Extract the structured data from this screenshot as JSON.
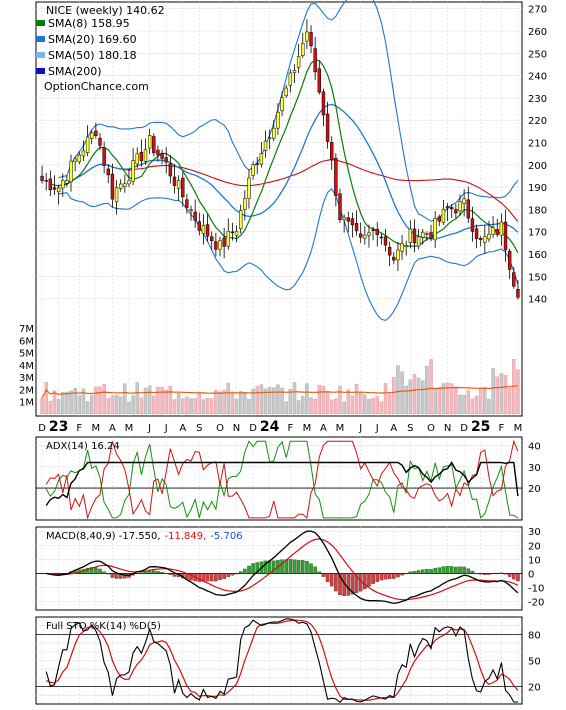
{
  "header": {
    "symbol_line": "NICE (weekly) 140.62",
    "watermark": "OptionChance.com"
  },
  "legend": [
    {
      "label": "SMA(8) 158.95",
      "color": "#0a7a0a"
    },
    {
      "label": "SMA(20) 169.60",
      "color": "#1f77d0"
    },
    {
      "label": "SMA(50) 180.18",
      "color": "#7ab8e8"
    },
    {
      "label": "SMA(200)",
      "color": "#1010c0"
    }
  ],
  "colors": {
    "up_candle": "#ffff33",
    "down_candle": "#cc1111",
    "sma8": "#0a7a0a",
    "sma20": "#1f77d0",
    "sma50": "#c81010",
    "bollinger": "#1f77d0",
    "bollinger_squeeze": "#e8e820",
    "volume_up": "#f4b8c0",
    "volume_down": "#c8c8c8",
    "volume_avg": "#e06010",
    "adx": "#000000",
    "plus_di": "#109010",
    "minus_di": "#d01010",
    "macd": "#000000",
    "signal": "#d01010",
    "hist_pos": "#30a030",
    "hist_neg": "#d04040",
    "stoch_k": "#000000",
    "stoch_d": "#d01010"
  },
  "x_axis": {
    "labels": [
      "D",
      "23",
      "F",
      "M",
      "A",
      "M",
      "J",
      "J",
      "A",
      "S",
      "O",
      "N",
      "D",
      "24",
      "F",
      "M",
      "A",
      "M",
      "J",
      "J",
      "A",
      "S",
      "O",
      "N",
      "D",
      "25",
      "F",
      "M"
    ],
    "year_labels": [
      "23",
      "24",
      "25"
    ]
  },
  "chart_data": [
    {
      "type": "candlestick",
      "title": "NICE (weekly) 140.62",
      "y_ticks": [
        140,
        150,
        160,
        170,
        180,
        190,
        200,
        210,
        220,
        230,
        240,
        250,
        260,
        270
      ],
      "ylim": [
        134,
        273
      ],
      "close_last": 140.62,
      "close_points": [
        {
          "x": "D",
          "close": 193
        },
        {
          "x": "23",
          "close": 190
        },
        {
          "x": "F",
          "close": 205
        },
        {
          "x": "M",
          "close": 216
        },
        {
          "x": "A",
          "close": 187
        },
        {
          "x": "M",
          "close": 196
        },
        {
          "x": "J",
          "close": 210
        },
        {
          "x": "J",
          "close": 200
        },
        {
          "x": "A",
          "close": 186
        },
        {
          "x": "S",
          "close": 173
        },
        {
          "x": "O",
          "close": 163
        },
        {
          "x": "N",
          "close": 172
        },
        {
          "x": "D",
          "close": 199
        },
        {
          "x": "24",
          "close": 215
        },
        {
          "x": "F",
          "close": 238
        },
        {
          "x": "M",
          "close": 260
        },
        {
          "x": "A",
          "close": 224
        },
        {
          "x": "M",
          "close": 177
        },
        {
          "x": "J",
          "close": 165
        },
        {
          "x": "J",
          "close": 172
        },
        {
          "x": "A",
          "close": 158
        },
        {
          "x": "S",
          "close": 168
        },
        {
          "x": "O",
          "close": 170
        },
        {
          "x": "N",
          "close": 180
        },
        {
          "x": "D",
          "close": 182
        },
        {
          "x": "25",
          "close": 165
        },
        {
          "x": "F",
          "close": 172
        },
        {
          "x": "M",
          "close": 141
        }
      ],
      "sma_last": {
        "SMA(8)": 158.95,
        "SMA(20)": 169.6,
        "SMA(50)": 180.18
      }
    },
    {
      "type": "bar",
      "title": "Volume",
      "y_ticks": [
        "1M",
        "2M",
        "3M",
        "4M",
        "5M",
        "6M",
        "7M"
      ]
    },
    {
      "type": "line",
      "title": "ADX(14) 16.24",
      "y_ticks": [
        20,
        30,
        40
      ],
      "ylim": [
        5,
        44
      ],
      "last_value": 16.24
    },
    {
      "type": "line",
      "title": "MACD(8,40,9) -17.550, -11.849, -5.706",
      "label_parts": {
        "base": "MACD(8,40,9) -17.550,",
        "signal": "-11.849,",
        "hist": "-5.706"
      },
      "y_ticks": [
        -20,
        -10,
        0,
        10,
        20,
        30
      ],
      "ylim": [
        -26,
        33
      ]
    },
    {
      "type": "line",
      "title": "Full STO %K(14) %D(5)",
      "y_ticks": [
        20,
        50,
        80
      ],
      "ylim": [
        0,
        100
      ]
    }
  ]
}
